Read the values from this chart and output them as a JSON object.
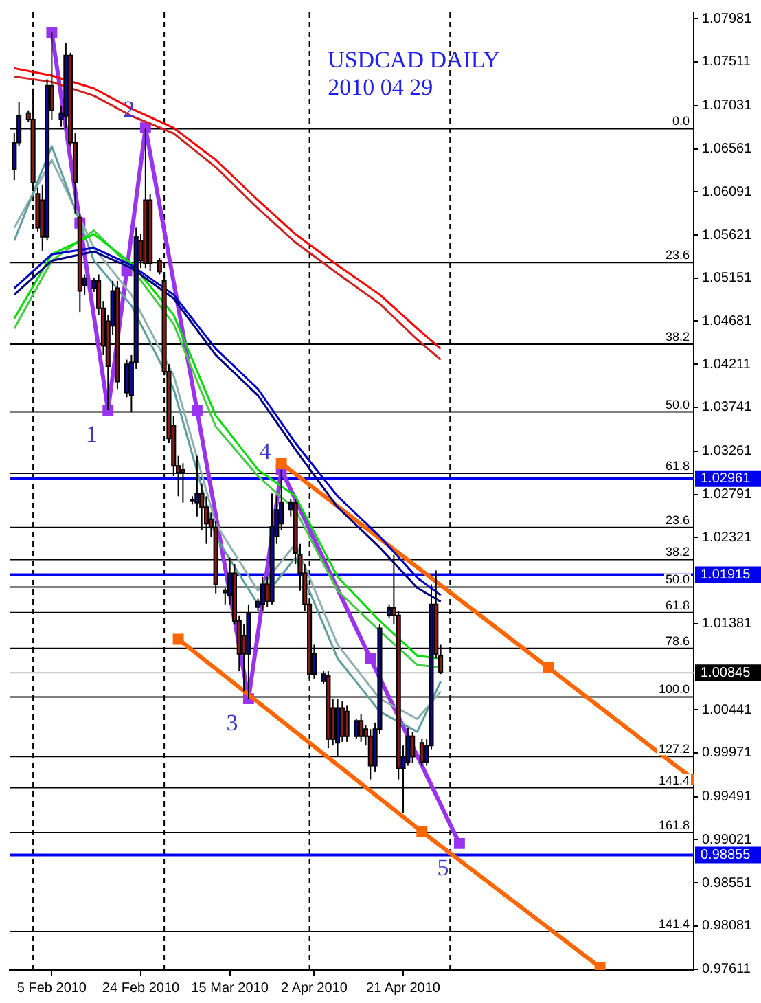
{
  "chart_data": {
    "type": "candlestick",
    "title": "USDCAD DAILY",
    "subtitle": "2010 04 29",
    "x": [
      "2010-01-28",
      "2010-01-29",
      "2010-01-31",
      "2010-02-01",
      "2010-02-02",
      "2010-02-03",
      "2010-02-04",
      "2010-02-05",
      "2010-02-07",
      "2010-02-08",
      "2010-02-09",
      "2010-02-10",
      "2010-02-11",
      "2010-02-12",
      "2010-02-14",
      "2010-02-15",
      "2010-02-16",
      "2010-02-17",
      "2010-02-18",
      "2010-02-19",
      "2010-02-21",
      "2010-02-22",
      "2010-02-23",
      "2010-02-24",
      "2010-02-25",
      "2010-02-26",
      "2010-02-28",
      "2010-03-01",
      "2010-03-02",
      "2010-03-03",
      "2010-03-04",
      "2010-03-05",
      "2010-03-07",
      "2010-03-08",
      "2010-03-09",
      "2010-03-10",
      "2010-03-11",
      "2010-03-12",
      "2010-03-14",
      "2010-03-15",
      "2010-03-16",
      "2010-03-17",
      "2010-03-18",
      "2010-03-19",
      "2010-03-21",
      "2010-03-22",
      "2010-03-23",
      "2010-03-24",
      "2010-03-25",
      "2010-03-26",
      "2010-03-28",
      "2010-03-29",
      "2010-03-30",
      "2010-03-31",
      "2010-04-01",
      "2010-04-02",
      "2010-04-04",
      "2010-04-05",
      "2010-04-06",
      "2010-04-07",
      "2010-04-08",
      "2010-04-09",
      "2010-04-11",
      "2010-04-12",
      "2010-04-13",
      "2010-04-14",
      "2010-04-15",
      "2010-04-16",
      "2010-04-18",
      "2010-04-19",
      "2010-04-20",
      "2010-04-21",
      "2010-04-22",
      "2010-04-23",
      "2010-04-25",
      "2010-04-26",
      "2010-04-27",
      "2010-04-28",
      "2010-04-29"
    ],
    "ohlc": [
      [
        1.0634,
        1.0673,
        1.0622,
        1.0663
      ],
      [
        1.0663,
        1.0707,
        1.0659,
        1.0692
      ],
      [
        1.0695,
        1.0698,
        1.0685,
        1.0688
      ],
      [
        1.0688,
        1.0722,
        1.061,
        1.0619
      ],
      [
        1.0607,
        1.0614,
        1.0566,
        1.057
      ],
      [
        1.06,
        1.0617,
        1.0545,
        1.056
      ],
      [
        1.056,
        1.0732,
        1.0556,
        1.0725
      ],
      [
        1.0725,
        1.0783,
        1.0688,
        1.0698
      ],
      [
        1.0688,
        1.0703,
        1.068,
        1.0695
      ],
      [
        1.0692,
        1.0772,
        1.0678,
        1.0758
      ],
      [
        1.0758,
        1.0761,
        1.0659,
        1.0663
      ],
      [
        1.0663,
        1.0673,
        1.0585,
        1.0619
      ],
      [
        1.0581,
        1.0585,
        1.0478,
        1.0501
      ],
      [
        1.0507,
        1.0519,
        1.0497,
        1.0515
      ],
      [
        1.0504,
        1.0515,
        1.05,
        1.0512
      ],
      [
        1.0512,
        1.0519,
        1.0475,
        1.0482
      ],
      [
        1.0482,
        1.049,
        1.0431,
        1.0441
      ],
      [
        1.0468,
        1.0475,
        1.0371,
        1.0419
      ],
      [
        1.0463,
        1.0512,
        1.0453,
        1.0501
      ],
      [
        1.0504,
        1.0512,
        1.0394,
        1.0402
      ],
      [
        1.039,
        1.0426,
        1.0385,
        1.0421
      ],
      [
        1.0387,
        1.0431,
        1.0369,
        1.0423
      ],
      [
        1.0423,
        1.057,
        1.0416,
        1.056
      ],
      [
        1.0556,
        1.0563,
        1.0526,
        1.0534
      ],
      [
        1.06,
        1.0679,
        1.0526,
        1.0531
      ],
      [
        1.06,
        1.0607,
        1.0523,
        1.0531
      ],
      [
        1.0534,
        1.0537,
        1.0519,
        1.0522
      ],
      [
        1.0512,
        1.0519,
        1.0409,
        1.0413
      ],
      [
        1.0413,
        1.0421,
        1.0335,
        1.034
      ],
      [
        1.0354,
        1.0365,
        1.0299,
        1.031
      ],
      [
        1.031,
        1.0321,
        1.0277,
        1.0303
      ],
      [
        1.0306,
        1.0313,
        1.027,
        1.0303
      ],
      [
        1.0273,
        1.0277,
        1.0268,
        1.0273
      ],
      [
        1.027,
        1.0321,
        1.0255,
        1.028
      ],
      [
        1.028,
        1.0291,
        1.024,
        1.0265
      ],
      [
        1.0265,
        1.0277,
        1.0225,
        1.0247
      ],
      [
        1.0252,
        1.0259,
        1.0233,
        1.0243
      ],
      [
        1.0243,
        1.025,
        1.0171,
        1.0181
      ],
      [
        1.0174,
        1.0177,
        1.0159,
        1.0172
      ],
      [
        1.0169,
        1.021,
        1.0159,
        1.0193
      ],
      [
        1.0193,
        1.0203,
        1.0137,
        1.0141
      ],
      [
        1.0141,
        1.0147,
        1.0086,
        1.0105
      ],
      [
        1.0125,
        1.0137,
        1.0064,
        1.0105
      ],
      [
        1.0105,
        1.0159,
        1.0056,
        1.0149
      ],
      [
        1.0156,
        1.0165,
        1.0152,
        1.0162
      ],
      [
        1.0159,
        1.0189,
        1.0152,
        1.0181
      ],
      [
        1.0181,
        1.0189,
        1.0156,
        1.0162
      ],
      [
        1.0162,
        1.028,
        1.0159,
        1.0244
      ],
      [
        1.0233,
        1.0277,
        1.0225,
        1.0262
      ],
      [
        1.0247,
        1.0306,
        1.024,
        1.027
      ],
      [
        1.0262,
        1.0274,
        1.0255,
        1.027
      ],
      [
        1.027,
        1.0274,
        1.0203,
        1.0215
      ],
      [
        1.0213,
        1.0225,
        1.0174,
        1.0193
      ],
      [
        1.0193,
        1.0203,
        1.0152,
        1.0159
      ],
      [
        1.0159,
        1.0166,
        1.0078,
        1.0083
      ],
      [
        1.0083,
        1.0115,
        1.0078,
        1.0105
      ],
      [
        1.0075,
        1.0086,
        1.0072,
        1.0083
      ],
      [
        1.0081,
        1.0086,
        1.0002,
        1.0012
      ],
      [
        1.0046,
        1.0056,
        1.0005,
        1.0012
      ],
      [
        1.0008,
        1.0056,
        0.9993,
        1.0046
      ],
      [
        1.0046,
        1.0053,
        1.0009,
        1.0015
      ],
      [
        1.0042,
        1.0049,
        1.0009,
        1.0015
      ],
      [
        1.0015,
        1.0034,
        1.0012,
        1.0032
      ],
      [
        1.0032,
        1.0039,
        1.0009,
        1.0015
      ],
      [
        1.0023,
        1.0027,
        1.0005,
        1.0015
      ],
      [
        1.0015,
        1.0023,
        0.9968,
        0.9983
      ],
      [
        0.9983,
        1.003,
        0.9976,
        1.0023
      ],
      [
        1.0023,
        1.0137,
        1.0018,
        1.0133
      ],
      [
        1.0147,
        1.0159,
        1.0144,
        1.0155
      ],
      [
        1.0155,
        1.0213,
        1.0137,
        1.0147
      ],
      [
        1.0147,
        1.0152,
        0.9968,
        0.998
      ],
      [
        0.998,
        1.0005,
        0.9931,
        0.9993
      ],
      [
        0.9987,
        1.0024,
        0.9983,
        1.0015
      ],
      [
        1.0015,
        1.002,
        0.9986,
        0.9993
      ],
      [
        1.0008,
        1.0012,
        0.9983,
        0.9987
      ],
      [
        0.9987,
        1.0012,
        0.9983,
        1.0005
      ],
      [
        1.0005,
        1.0181,
        1.0001,
        1.0159
      ],
      [
        1.0159,
        1.0196,
        1.01,
        1.0105
      ],
      [
        1.0103,
        1.0115,
        1.0083,
        1.0085
      ]
    ],
    "series": [
      {
        "type": "line",
        "color": "#ff0000",
        "x": [
          "2010-01-28",
          "2010-02-05",
          "2010-02-14",
          "2010-02-22",
          "2010-03-03",
          "2010-03-12",
          "2010-03-21",
          "2010-03-29",
          "2010-04-07",
          "2010-04-16",
          "2010-04-24",
          "2010-04-29"
        ],
        "values": [
          1.0744,
          1.0736,
          1.0722,
          1.07,
          1.0679,
          1.0644,
          1.06,
          1.0563,
          1.0529,
          1.0497,
          1.046,
          1.0438
        ]
      },
      {
        "type": "line",
        "color": "#d02020",
        "x": [
          "2010-01-28",
          "2010-02-05",
          "2010-02-14",
          "2010-02-22",
          "2010-03-03",
          "2010-03-12",
          "2010-03-21",
          "2010-03-29",
          "2010-04-07",
          "2010-04-16",
          "2010-04-24",
          "2010-04-29"
        ],
        "values": [
          1.0735,
          1.0729,
          1.0714,
          1.0692,
          1.0673,
          1.0636,
          1.0591,
          1.0554,
          1.052,
          1.0487,
          1.0448,
          1.0426
        ]
      },
      {
        "type": "line",
        "color": "#0000cc",
        "x": [
          "2010-01-28",
          "2010-02-05",
          "2010-02-14",
          "2010-02-22",
          "2010-03-03",
          "2010-03-12",
          "2010-03-21",
          "2010-03-29",
          "2010-04-07",
          "2010-04-16",
          "2010-04-24",
          "2010-04-29"
        ],
        "values": [
          1.0504,
          1.0541,
          1.0548,
          1.0529,
          1.0497,
          1.0438,
          1.0394,
          1.0335,
          1.0277,
          1.0233,
          1.0188,
          1.0169
        ]
      },
      {
        "type": "line",
        "color": "#000080",
        "x": [
          "2010-01-28",
          "2010-02-05",
          "2010-02-14",
          "2010-02-22",
          "2010-03-03",
          "2010-03-12",
          "2010-03-21",
          "2010-03-29",
          "2010-04-07",
          "2010-04-16",
          "2010-04-24",
          "2010-04-29"
        ],
        "values": [
          1.0497,
          1.0534,
          1.0544,
          1.0526,
          1.0493,
          1.0431,
          1.0387,
          1.0328,
          1.0265,
          1.0221,
          1.0177,
          1.0162
        ]
      },
      {
        "type": "line",
        "color": "#00dd00",
        "x": [
          "2010-01-28",
          "2010-02-05",
          "2010-02-14",
          "2010-02-22",
          "2010-03-03",
          "2010-03-12",
          "2010-03-21",
          "2010-03-29",
          "2010-04-07",
          "2010-04-16",
          "2010-04-24",
          "2010-04-29"
        ],
        "values": [
          1.0471,
          1.0541,
          1.0563,
          1.0531,
          1.0475,
          1.0365,
          1.0306,
          1.0277,
          1.0189,
          1.0141,
          1.0103,
          1.01
        ]
      },
      {
        "type": "line",
        "color": "#44cc44",
        "x": [
          "2010-01-28",
          "2010-02-05",
          "2010-02-14",
          "2010-02-22",
          "2010-03-03",
          "2010-03-12",
          "2010-03-21",
          "2010-03-29",
          "2010-04-07",
          "2010-04-16",
          "2010-04-24",
          "2010-04-29"
        ],
        "values": [
          1.046,
          1.0534,
          1.0567,
          1.0526,
          1.0465,
          1.0353,
          1.0299,
          1.0262,
          1.0174,
          1.013,
          1.0093,
          1.009
        ]
      },
      {
        "type": "line",
        "color": "#5f9ea0",
        "x": [
          "2010-01-28",
          "2010-02-05",
          "2010-02-14",
          "2010-02-22",
          "2010-03-03",
          "2010-03-12",
          "2010-03-21",
          "2010-03-29",
          "2010-04-07",
          "2010-04-16",
          "2010-04-24",
          "2010-04-29"
        ],
        "values": [
          1.0556,
          1.0659,
          1.0534,
          1.0485,
          1.0394,
          1.0233,
          1.0159,
          1.021,
          1.01,
          1.0042,
          1.002,
          1.0075
        ]
      },
      {
        "type": "line",
        "color": "#8fb0b0",
        "x": [
          "2010-01-28",
          "2010-02-05",
          "2010-02-14",
          "2010-02-22",
          "2010-03-03",
          "2010-03-12",
          "2010-03-21",
          "2010-03-29",
          "2010-04-07",
          "2010-04-16",
          "2010-04-24",
          "2010-04-29"
        ],
        "values": [
          1.057,
          1.0644,
          1.0548,
          1.0497,
          1.0409,
          1.0247,
          1.0174,
          1.0225,
          1.0115,
          1.0056,
          1.0034,
          1.0064
        ]
      },
      {
        "type": "line",
        "color": "#ff6600",
        "marker": "square",
        "x": [
          "2010-03-26",
          "2010-05-22",
          "2010-06-22"
        ],
        "values": [
          1.0313,
          1.009,
          0.9968
        ]
      },
      {
        "type": "line",
        "color": "#ff6600",
        "marker": "square",
        "x": [
          "2010-03-04",
          "2010-04-25",
          "2010-06-02"
        ],
        "values": [
          1.0121,
          0.9911,
          0.9763
        ]
      },
      {
        "type": "line",
        "color": "#9933ee",
        "marker": "square",
        "x": [
          "2010-02-05",
          "2010-02-11",
          "2010-02-17",
          "2010-02-21",
          "2010-02-25",
          "2010-03-08",
          "2010-03-19",
          "2010-03-26",
          "2010-04-14",
          "2010-05-03"
        ],
        "values": [
          1.0783,
          1.0575,
          1.0371,
          1.0523,
          1.0679,
          1.0371,
          1.0056,
          1.0306,
          1.01,
          0.9898
        ]
      }
    ],
    "xlim": [
      "2010-01-27",
      "2010-06-22"
    ],
    "xticks": [
      {
        "value": "2010-02-05",
        "label": "5 Feb 2010"
      },
      {
        "value": "2010-02-24",
        "label": "24 Feb 2010"
      },
      {
        "value": "2010-03-15",
        "label": "15 Mar 2010"
      },
      {
        "value": "2010-04-02",
        "label": "2 Apr 2010"
      },
      {
        "value": "2010-04-21",
        "label": "21 Apr 2010"
      }
    ],
    "ylim": [
      0.976,
      1.0805
    ],
    "yticks": [
      1.07981,
      1.07511,
      1.07031,
      1.06561,
      1.06091,
      1.05621,
      1.05151,
      1.04681,
      1.04211,
      1.03741,
      1.03261,
      1.02791,
      1.02321,
      1.01381,
      1.00441,
      0.99971,
      0.99491,
      0.99021,
      0.98551,
      0.98081,
      0.97611
    ],
    "ref_lines": [
      {
        "axis": "x",
        "value": "2010-02-01",
        "color": "#000000",
        "line_style": "dashed"
      },
      {
        "axis": "x",
        "value": "2010-03-01",
        "color": "#000000",
        "line_style": "dashed"
      },
      {
        "axis": "x",
        "value": "2010-04-01",
        "color": "#000000",
        "line_style": "dashed"
      },
      {
        "axis": "x",
        "value": "2010-05-01",
        "color": "#000000",
        "line_style": "dashed"
      },
      {
        "axis": "y",
        "value": 1.0678,
        "color": "#000000"
      },
      {
        "axis": "y",
        "value": 1.0532,
        "color": "#000000"
      },
      {
        "axis": "y",
        "value": 1.0443,
        "color": "#000000"
      },
      {
        "axis": "y",
        "value": 1.0369,
        "color": "#000000"
      },
      {
        "axis": "y",
        "value": 1.0302,
        "color": "#000000"
      },
      {
        "axis": "y",
        "value": 1.0243,
        "color": "#000000"
      },
      {
        "axis": "y",
        "value": 1.0208,
        "color": "#000000"
      },
      {
        "axis": "y",
        "value": 1.0178,
        "color": "#000000"
      },
      {
        "axis": "y",
        "value": 1.015,
        "color": "#000000"
      },
      {
        "axis": "y",
        "value": 1.0111,
        "color": "#000000"
      },
      {
        "axis": "y",
        "value": 1.0058,
        "color": "#000000"
      },
      {
        "axis": "y",
        "value": 0.9993,
        "color": "#000000"
      },
      {
        "axis": "y",
        "value": 0.9959,
        "color": "#000000"
      },
      {
        "axis": "y",
        "value": 0.991,
        "color": "#000000"
      },
      {
        "axis": "y",
        "value": 0.9802,
        "color": "#000000"
      },
      {
        "axis": "y",
        "value": 1.02961,
        "label": "1.02961",
        "color": "#0000ee"
      },
      {
        "axis": "y",
        "value": 1.01915,
        "label": "1.01915",
        "color": "#0000ee"
      },
      {
        "axis": "y",
        "value": 1.00845,
        "label": "1.00845",
        "color": "#c0c0c0"
      },
      {
        "axis": "y",
        "value": 0.98855,
        "label": "0.98855",
        "color": "#0000ee"
      }
    ],
    "annotations": [
      {
        "text": "1",
        "x": "2010-02-17",
        "y": 1.0371
      },
      {
        "text": "2",
        "x": "2010-02-25",
        "y": 1.0679
      },
      {
        "text": "3",
        "x": "2010-03-19",
        "y": 1.0056
      },
      {
        "text": "4",
        "x": "2010-03-26",
        "y": 1.0306
      },
      {
        "text": "5",
        "x": "2010-05-03",
        "y": 0.9898
      },
      {
        "text": "0.0",
        "x": "2010-06-22",
        "y": 1.0678
      },
      {
        "text": "23.6",
        "x": "2010-06-22",
        "y": 1.0532
      },
      {
        "text": "38.2",
        "x": "2010-06-22",
        "y": 1.0443
      },
      {
        "text": "50.0",
        "x": "2010-06-22",
        "y": 1.0369
      },
      {
        "text": "61.8",
        "x": "2010-06-22",
        "y": 1.0302
      },
      {
        "text": "23.6",
        "x": "2010-06-22",
        "y": 1.0243
      },
      {
        "text": "38.2",
        "x": "2010-06-22",
        "y": 1.0208
      },
      {
        "text": "50.0",
        "x": "2010-06-22",
        "y": 1.0178
      },
      {
        "text": "61.8",
        "x": "2010-06-22",
        "y": 1.015
      },
      {
        "text": "78.6",
        "x": "2010-06-22",
        "y": 1.0111
      },
      {
        "text": "100.0",
        "x": "2010-06-22",
        "y": 1.0058
      },
      {
        "text": "127.2",
        "x": "2010-06-22",
        "y": 0.9993
      },
      {
        "text": "141.4",
        "x": "2010-06-22",
        "y": 0.9959
      },
      {
        "text": "161.8",
        "x": "2010-06-22",
        "y": 0.991
      },
      {
        "text": "141.4",
        "x": "2010-06-22",
        "y": 0.9802
      }
    ],
    "marker": "none",
    "grid": false,
    "legend": false
  }
}
